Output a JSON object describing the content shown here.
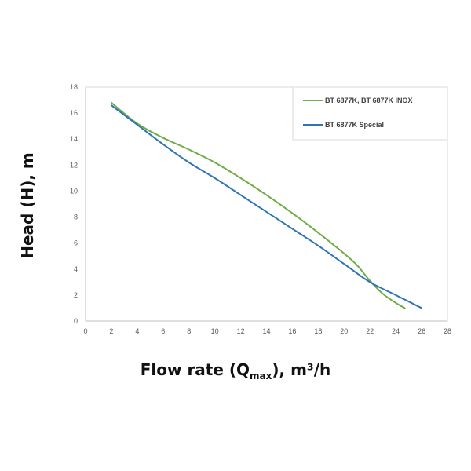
{
  "chart_data": {
    "type": "line",
    "xlabel": "Flow rate (Q",
    "xlabel_sub": "max",
    "xlabel_tail": "), m³/h",
    "ylabel": "Head (H), m",
    "xlim": [
      0,
      28
    ],
    "ylim": [
      0,
      18
    ],
    "x_ticks": [
      0,
      2,
      4,
      6,
      8,
      10,
      12,
      14,
      16,
      18,
      20,
      22,
      24,
      26,
      28
    ],
    "y_ticks": [
      0,
      2,
      4,
      6,
      8,
      10,
      12,
      14,
      16,
      18
    ],
    "grid": false,
    "legend_position": "top-right",
    "series": [
      {
        "name": "BT 6877K, BT 6877K INOX",
        "color": "#70ad47",
        "x": [
          2,
          4,
          6,
          8,
          10,
          12,
          14,
          16,
          18,
          20,
          21,
          22,
          23,
          24,
          24.7
        ],
        "y": [
          16.8,
          15.2,
          14.1,
          13.2,
          12.2,
          11.0,
          9.7,
          8.3,
          6.8,
          5.2,
          4.3,
          3.1,
          2.1,
          1.4,
          1.0
        ]
      },
      {
        "name": "BT 6877K Special",
        "color": "#2e75b6",
        "x": [
          2,
          4,
          6,
          8,
          10,
          12,
          14,
          16,
          18,
          20,
          22,
          24,
          26
        ],
        "y": [
          16.6,
          15.1,
          13.6,
          12.2,
          11.0,
          9.7,
          8.4,
          7.1,
          5.8,
          4.4,
          3.0,
          2.0,
          1.0
        ]
      }
    ]
  }
}
